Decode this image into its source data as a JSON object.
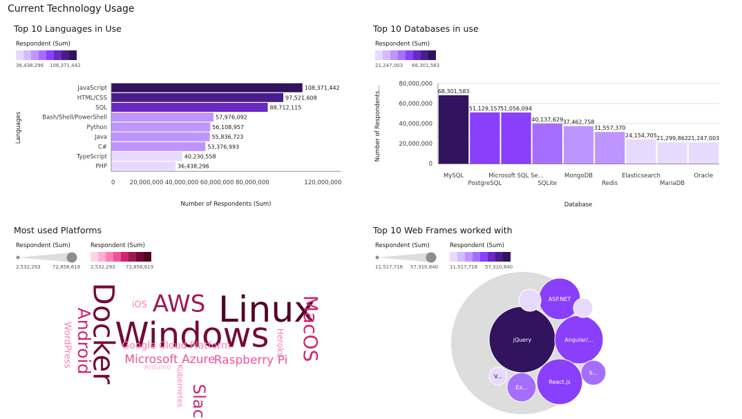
{
  "page_title": "Current Technology Usage",
  "colors": {
    "purple_scale": [
      "#e8daff",
      "#d4bbff",
      "#be95ff",
      "#a56eff",
      "#8a3ffc",
      "#6929c4",
      "#491d8b",
      "#31135e"
    ],
    "magenta_scale": [
      "#ffd6e8",
      "#ffafd2",
      "#ff7eb6",
      "#ee5396",
      "#d02670",
      "#9f1853",
      "#740937",
      "#510224"
    ],
    "bubble_outer": "#dddddd",
    "size_legend": "#8d8d8d"
  },
  "languages_panel": {
    "title": "Top 10 Languages in Use",
    "legend_title": "Respondent (Sum)",
    "legend_min": "36,438,296",
    "legend_max": "108,371,442"
  },
  "databases_panel": {
    "title": "Top 10 Databases in use",
    "legend_title": "Respondent (Sum)",
    "legend_min": "21,247,003",
    "legend_max": "68,301,583"
  },
  "platforms_panel": {
    "title": "Most used Platforms",
    "size_legend_title": "Respondent (Sum)",
    "size_legend_min": "2,532,293",
    "size_legend_max": "72,858,619",
    "color_legend_title": "Respondent (Sum)",
    "color_legend_min": "2,532,293",
    "color_legend_max": "72,858,619"
  },
  "frameworks_panel": {
    "title": "Top 10 Web Frames worked with",
    "size_legend_title": "Respondent (Sum)",
    "size_legend_min": "11,517,716",
    "size_legend_max": "57,310,840",
    "color_legend_title": "Respondent (Sum)",
    "color_legend_min": "11,517,716",
    "color_legend_max": "57,310,840"
  },
  "chart_data": [
    {
      "type": "bar",
      "orientation": "horizontal",
      "title": "Top 10 Languages in Use",
      "xlabel": "Number of Respondents (Sum)",
      "ylabel": "Languages",
      "categories": [
        "JavaScript",
        "HTML/CSS",
        "SQL",
        "Bash/Shell/PowerShell",
        "Python",
        "Java",
        "C#",
        "TypeScript",
        "PHP"
      ],
      "values": [
        108371442,
        97521608,
        88712115,
        57976092,
        56108957,
        55836723,
        53376993,
        40230558,
        36438296
      ],
      "value_labels": [
        "108,371,442",
        "97,521,608",
        "88,712,115",
        "57,976,092",
        "56,108,957",
        "55,836,723",
        "53,376,993",
        "40,230,558",
        "36,438,296"
      ],
      "xlim": [
        0,
        130000000
      ],
      "xticks": [
        0,
        20000000,
        40000000,
        60000000,
        80000000,
        120000000
      ],
      "xtick_labels": [
        "0",
        "20,000,000",
        "40,000,000",
        "60,000,000",
        "80,000,000",
        "120,000,000"
      ],
      "grid": false,
      "legend": "top-left"
    },
    {
      "type": "bar",
      "orientation": "vertical",
      "title": "Top 10 Databases in use",
      "xlabel": "Database",
      "ylabel": "Number of Respondents...",
      "categories": [
        "MySQL",
        "PostgreSQL",
        "Microsoft SQL Se...",
        "SQLite",
        "MongoDB",
        "Redis",
        "Elasticsearch",
        "MariaDB",
        "Oracle"
      ],
      "values": [
        68301583,
        51129157,
        51056094,
        40137629,
        37462758,
        31557370,
        24154705,
        21299862,
        21247003
      ],
      "value_labels": [
        "68,301,583",
        "51,129,157",
        "51,056,094",
        "40,137,629",
        "37,462,758",
        "31,557,370",
        "24,154,705",
        "21,299,862",
        "21,247,003"
      ],
      "ylim": [
        0,
        80000000
      ],
      "yticks": [
        0,
        20000000,
        40000000,
        60000000,
        80000000
      ],
      "ytick_labels": [
        "0",
        "20,000,000",
        "40,000,000",
        "60,000,000",
        "80,000,000"
      ],
      "grid": true,
      "legend": "top-left"
    },
    {
      "type": "wordcloud",
      "title": "Most used Platforms",
      "words": [
        {
          "text": "Linux",
          "level": 7
        },
        {
          "text": "Windows",
          "level": 6
        },
        {
          "text": "Docker",
          "level": 6
        },
        {
          "text": "AWS",
          "level": 5
        },
        {
          "text": "Android",
          "level": 4
        },
        {
          "text": "MacOS",
          "level": 4
        },
        {
          "text": "Slack",
          "level": 4
        },
        {
          "text": "Microsoft Azure",
          "level": 3
        },
        {
          "text": "Raspberry Pi",
          "level": 3
        },
        {
          "text": "Google Cloud Platform",
          "level": 2
        },
        {
          "text": "WordPress",
          "level": 2
        },
        {
          "text": "iOS",
          "level": 2
        },
        {
          "text": "Heroku",
          "level": 2
        },
        {
          "text": "Kubernetes",
          "level": 2
        },
        {
          "text": "Arduino",
          "level": 1
        }
      ]
    },
    {
      "type": "bubble",
      "title": "Top 10 Web Frames worked with",
      "bubbles": [
        {
          "label": "jQuery",
          "level": 7
        },
        {
          "label": "ASP.NET",
          "level": 4
        },
        {
          "label": "Angular/...",
          "level": 4
        },
        {
          "label": "React.js",
          "level": 4
        },
        {
          "label": "Ex...",
          "level": 3
        },
        {
          "label": "S...",
          "level": 3
        },
        {
          "label": "V...",
          "level": 0
        },
        {
          "label": "",
          "level": 0
        },
        {
          "label": "",
          "level": 0
        }
      ]
    }
  ]
}
